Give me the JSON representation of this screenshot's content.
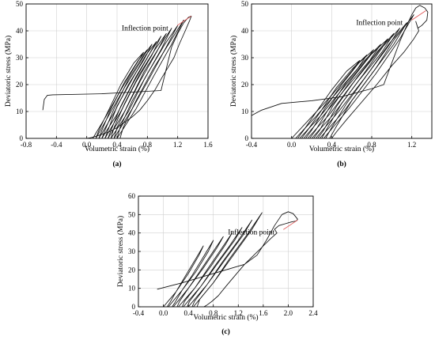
{
  "chart_data": [
    {
      "id": "a",
      "type": "line",
      "panel_label": "(a)",
      "xlabel": "Volumetric strain (%)",
      "ylabel": "Deviatoric stress (MPa)",
      "xlim": [
        -0.8,
        1.6
      ],
      "ylim": [
        0,
        50
      ],
      "xticks": [
        "-0.8",
        "-0.4",
        "0.0",
        "0.4",
        "0.8",
        "1.2",
        "1.6"
      ],
      "yticks": [
        "0",
        "10",
        "20",
        "30",
        "40",
        "50"
      ],
      "grid": true,
      "annotation": {
        "text": "Inflection point",
        "points_to": [
          1.38,
          45.5
        ]
      },
      "series": [
        {
          "x": [
            -0.58,
            -0.56,
            -0.52,
            -0.45,
            0.2,
            0.6,
            0.98,
            1.05,
            1.12,
            1.2,
            1.28,
            1.34,
            1.38,
            1.36,
            1.3,
            1.22,
            1.15,
            1.0,
            0.9,
            0.8,
            0.7,
            0.6,
            0.5,
            0.4,
            0.3,
            0.2,
            0.12,
            0.06,
            0.0
          ],
          "y": [
            10.5,
            14.5,
            16.0,
            16.2,
            16.6,
            17.2,
            17.8,
            26,
            34,
            39,
            43,
            45,
            45.5,
            44,
            40,
            35,
            30,
            23,
            18,
            14,
            10.5,
            8,
            6,
            4,
            2.5,
            1.5,
            0.8,
            0.3,
            0.0
          ]
        },
        {
          "x": [
            0.08,
            0.25,
            0.45,
            0.64,
            0.75,
            0.62,
            0.45,
            0.28,
            0.16,
            0.12
          ],
          "y": [
            0,
            8,
            18,
            27,
            32,
            28,
            20,
            10,
            3,
            0
          ]
        },
        {
          "x": [
            0.12,
            0.3,
            0.5,
            0.7,
            0.8,
            0.68,
            0.5,
            0.32,
            0.2,
            0.16
          ],
          "y": [
            0,
            9,
            19,
            28,
            33,
            29,
            21,
            11,
            3,
            0
          ]
        },
        {
          "x": [
            0.16,
            0.35,
            0.55,
            0.75,
            0.86,
            0.73,
            0.55,
            0.36,
            0.24,
            0.2
          ],
          "y": [
            0,
            9,
            20,
            29,
            35,
            30,
            22,
            11,
            3,
            0
          ]
        },
        {
          "x": [
            0.2,
            0.4,
            0.6,
            0.8,
            0.92,
            0.78,
            0.6,
            0.4,
            0.28,
            0.24
          ],
          "y": [
            0,
            9,
            20,
            30,
            36,
            31,
            22,
            12,
            3,
            0
          ]
        },
        {
          "x": [
            0.24,
            0.45,
            0.65,
            0.86,
            0.98,
            0.84,
            0.65,
            0.45,
            0.32,
            0.28
          ],
          "y": [
            0,
            10,
            21,
            31,
            38,
            32,
            23,
            12,
            3,
            0
          ]
        },
        {
          "x": [
            0.28,
            0.5,
            0.7,
            0.92,
            1.05,
            0.9,
            0.7,
            0.5,
            0.36,
            0.32
          ],
          "y": [
            0,
            10,
            21,
            32,
            39,
            33,
            24,
            13,
            4,
            0
          ]
        },
        {
          "x": [
            0.32,
            0.55,
            0.76,
            0.98,
            1.12,
            0.96,
            0.76,
            0.55,
            0.4,
            0.36
          ],
          "y": [
            0,
            10,
            22,
            33,
            41,
            34,
            25,
            13,
            4,
            0
          ]
        },
        {
          "x": [
            0.36,
            0.6,
            0.82,
            1.05,
            1.2,
            1.03,
            0.82,
            0.6,
            0.44,
            0.4
          ],
          "y": [
            0,
            11,
            22,
            34,
            42,
            35,
            25,
            14,
            4,
            0
          ]
        },
        {
          "x": [
            0.4,
            0.65,
            0.88,
            1.12,
            1.28,
            1.1,
            0.88,
            0.65,
            0.48,
            0.44
          ],
          "y": [
            0,
            11,
            23,
            35,
            44,
            36,
            26,
            14,
            4,
            0
          ]
        }
      ]
    },
    {
      "id": "b",
      "type": "line",
      "panel_label": "(b)",
      "xlabel": "Volumetric strain (%)",
      "ylabel": "Deviatoric stress (MPa)",
      "xlim": [
        -0.4,
        1.4
      ],
      "ylim": [
        0,
        50
      ],
      "xticks": [
        "-0.4",
        "0.0",
        "0.4",
        "0.8",
        "1.2"
      ],
      "yticks": [
        "0",
        "10",
        "20",
        "30",
        "40",
        "50"
      ],
      "grid": true,
      "annotation": {
        "text": "Inflection point",
        "points_to": [
          1.34,
          47.5
        ]
      },
      "series": [
        {
          "x": [
            -0.4,
            -0.3,
            -0.1,
            0.2,
            0.5,
            0.8,
            0.92,
            1.0,
            1.08,
            1.15,
            1.2,
            1.24,
            1.28,
            1.33,
            1.36,
            1.35,
            1.3,
            1.26,
            1.24,
            1.27,
            1.22,
            1.12,
            1.0,
            0.85,
            0.7,
            0.55,
            0.45,
            0.4
          ],
          "y": [
            8.5,
            10.5,
            13,
            14,
            15.5,
            18.5,
            20,
            28,
            36,
            42,
            46,
            48.5,
            49.5,
            48.5,
            47,
            44,
            42,
            41,
            43.5,
            40,
            37,
            32,
            27,
            20,
            13.5,
            7,
            2.5,
            0
          ]
        },
        {
          "x": [
            0.0,
            0.2,
            0.4,
            0.6,
            0.68,
            0.55,
            0.4,
            0.25,
            0.12,
            0.06
          ],
          "y": [
            0,
            8,
            16,
            25,
            29,
            25,
            18,
            10,
            3,
            0
          ]
        },
        {
          "x": [
            0.04,
            0.24,
            0.45,
            0.66,
            0.75,
            0.61,
            0.45,
            0.29,
            0.16,
            0.1
          ],
          "y": [
            0,
            8,
            17,
            26,
            31,
            26,
            19,
            10,
            3,
            0
          ]
        },
        {
          "x": [
            0.08,
            0.28,
            0.5,
            0.72,
            0.82,
            0.67,
            0.5,
            0.33,
            0.2,
            0.14
          ],
          "y": [
            0,
            8,
            18,
            28,
            33,
            28,
            20,
            11,
            3,
            0
          ]
        },
        {
          "x": [
            0.12,
            0.33,
            0.55,
            0.78,
            0.89,
            0.73,
            0.55,
            0.37,
            0.24,
            0.18
          ],
          "y": [
            0,
            9,
            19,
            29,
            35,
            29,
            21,
            11,
            3,
            0
          ]
        },
        {
          "x": [
            0.16,
            0.38,
            0.6,
            0.84,
            0.96,
            0.79,
            0.6,
            0.41,
            0.28,
            0.22
          ],
          "y": [
            0,
            9,
            20,
            31,
            37,
            31,
            22,
            12,
            3,
            0
          ]
        },
        {
          "x": [
            0.2,
            0.42,
            0.66,
            0.9,
            1.02,
            0.85,
            0.66,
            0.45,
            0.32,
            0.26
          ],
          "y": [
            0,
            9,
            21,
            32,
            39,
            32,
            23,
            12,
            3,
            0
          ]
        },
        {
          "x": [
            0.24,
            0.47,
            0.72,
            0.96,
            1.08,
            0.91,
            0.72,
            0.5,
            0.36,
            0.3
          ],
          "y": [
            0,
            10,
            22,
            34,
            41,
            34,
            24,
            13,
            4,
            0
          ]
        },
        {
          "x": [
            0.28,
            0.52,
            0.78,
            1.02,
            1.15,
            0.97,
            0.78,
            0.55,
            0.4,
            0.34
          ],
          "y": [
            0,
            10,
            23,
            35,
            43,
            35,
            25,
            13,
            4,
            0
          ]
        },
        {
          "x": [
            0.32,
            0.57,
            0.84,
            1.08,
            1.22,
            1.03,
            0.84,
            0.6,
            0.44,
            0.38
          ],
          "y": [
            0,
            11,
            24,
            37,
            46,
            37,
            26,
            14,
            4,
            0
          ]
        }
      ]
    },
    {
      "id": "c",
      "type": "line",
      "panel_label": "(c)",
      "xlabel": "Volumetric strain (%)",
      "ylabel": "Deviatoric stress (MPa)",
      "xlim": [
        -0.4,
        2.4
      ],
      "ylim": [
        0,
        60
      ],
      "xticks": [
        "-0.4",
        "0.0",
        "0.4",
        "0.8",
        "1.2",
        "1.6",
        "2.0",
        "2.4"
      ],
      "yticks": [
        "0",
        "10",
        "20",
        "30",
        "40",
        "50",
        "60"
      ],
      "grid": true,
      "annotation": {
        "text": "Inflection point",
        "points_to": [
          2.15,
          47.0
        ]
      },
      "series": [
        {
          "x": [
            -0.1,
            0.3,
            0.7,
            1.0,
            1.3,
            1.5,
            1.65,
            1.78,
            1.9,
            2.0,
            2.08,
            2.15,
            2.13,
            2.05,
            1.95,
            1.85,
            1.78,
            1.82,
            1.72,
            1.6,
            1.45,
            1.3,
            1.15,
            1.0,
            0.88,
            0.78,
            0.7,
            0.65
          ],
          "y": [
            9.5,
            13,
            17,
            20,
            23,
            28,
            36,
            44,
            50,
            51.5,
            50.5,
            47.5,
            46.5,
            46,
            45,
            44,
            42,
            40,
            37,
            33,
            28,
            23,
            17,
            11,
            6,
            3,
            1,
            0
          ]
        },
        {
          "x": [
            0.0,
            0.2,
            0.4,
            0.57,
            0.64,
            0.5,
            0.34,
            0.2,
            0.1,
            0.06
          ],
          "y": [
            0,
            8,
            18,
            28,
            33,
            25,
            16,
            8,
            2,
            0
          ]
        },
        {
          "x": [
            0.08,
            0.3,
            0.52,
            0.72,
            0.8,
            0.64,
            0.46,
            0.3,
            0.18,
            0.14
          ],
          "y": [
            0,
            9,
            19,
            30,
            36,
            27,
            17,
            9,
            2,
            0
          ]
        },
        {
          "x": [
            0.16,
            0.4,
            0.64,
            0.86,
            0.96,
            0.78,
            0.58,
            0.4,
            0.26,
            0.22
          ],
          "y": [
            0,
            10,
            21,
            32,
            38,
            29,
            19,
            10,
            3,
            0
          ]
        },
        {
          "x": [
            0.24,
            0.5,
            0.76,
            1.0,
            1.1,
            0.92,
            0.7,
            0.5,
            0.34,
            0.3
          ],
          "y": [
            0,
            10,
            22,
            34,
            40,
            31,
            20,
            10,
            3,
            0
          ]
        },
        {
          "x": [
            0.32,
            0.6,
            0.88,
            1.14,
            1.26,
            1.06,
            0.82,
            0.6,
            0.42,
            0.38
          ],
          "y": [
            0,
            11,
            24,
            36,
            43,
            33,
            22,
            11,
            3,
            0
          ]
        },
        {
          "x": [
            0.4,
            0.7,
            1.0,
            1.28,
            1.42,
            1.2,
            0.94,
            0.7,
            0.5,
            0.46
          ],
          "y": [
            0,
            12,
            26,
            39,
            47,
            36,
            24,
            12,
            3,
            0
          ]
        },
        {
          "x": [
            0.48,
            0.8,
            1.12,
            1.42,
            1.58,
            1.34,
            1.06,
            0.8,
            0.58,
            0.54
          ],
          "y": [
            0,
            13,
            28,
            42,
            51,
            39,
            26,
            13,
            4,
            0
          ]
        }
      ]
    }
  ]
}
